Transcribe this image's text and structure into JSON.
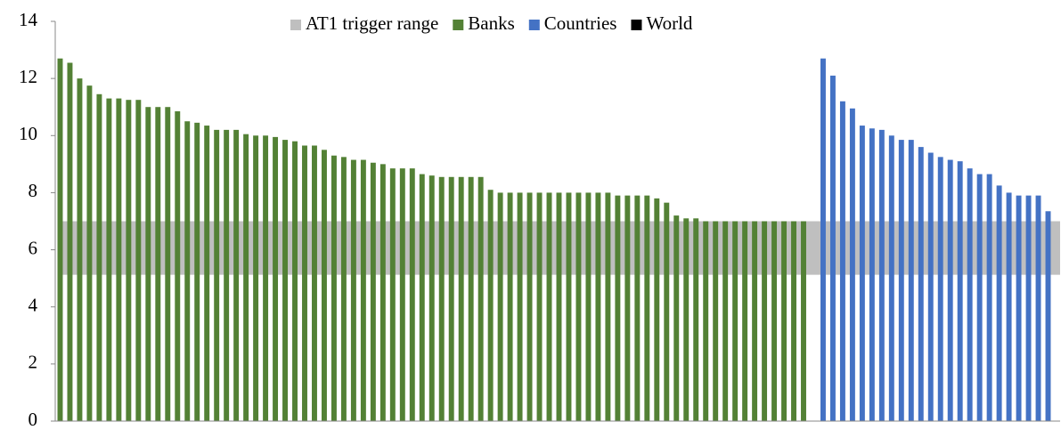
{
  "chart_data": {
    "type": "bar",
    "categories": [
      null,
      null,
      null,
      null,
      null,
      null,
      null,
      null,
      null,
      null,
      null,
      null,
      null,
      null,
      null,
      null,
      null,
      null,
      null,
      null,
      null,
      null,
      null,
      null,
      null,
      null,
      null,
      null,
      null,
      null,
      null,
      null,
      null,
      null,
      null,
      null,
      null,
      null,
      null,
      null,
      null,
      null,
      null,
      null,
      null,
      null,
      null,
      null,
      null,
      null,
      null,
      null,
      null,
      null,
      null,
      null,
      null,
      null,
      null,
      null,
      null,
      null,
      null,
      null,
      null,
      null,
      null,
      null,
      null,
      null,
      null,
      null,
      null,
      null,
      null,
      null,
      null,
      null,
      null,
      null,
      null,
      null,
      null,
      null,
      null,
      null,
      null,
      null,
      null,
      null,
      null,
      null,
      null,
      null,
      null,
      null,
      null,
      null,
      null,
      null,
      null,
      null
    ],
    "bands": [
      {
        "name": "AT1 trigger range",
        "color": "#bfbfbf",
        "from": 5.125,
        "to": 7
      }
    ],
    "series": [
      {
        "name": "Banks",
        "color": "#538135",
        "values": [
          12.7,
          12.55,
          12.0,
          11.75,
          11.45,
          11.3,
          11.3,
          11.25,
          11.25,
          11.0,
          11.0,
          11.0,
          10.85,
          10.5,
          10.45,
          10.35,
          10.2,
          10.2,
          10.2,
          10.05,
          10.0,
          10.0,
          9.95,
          9.85,
          9.8,
          9.65,
          9.65,
          9.5,
          9.3,
          9.25,
          9.15,
          9.15,
          9.05,
          9.0,
          8.85,
          8.85,
          8.85,
          8.65,
          8.6,
          8.55,
          8.55,
          8.55,
          8.55,
          8.55,
          8.1,
          8.0,
          8.0,
          8.0,
          8.0,
          8.0,
          8.0,
          8.0,
          8.0,
          8.0,
          8.0,
          8.0,
          8.0,
          7.9,
          7.9,
          7.9,
          7.9,
          7.8,
          7.65,
          7.2,
          7.1,
          7.1,
          7.0,
          7.0,
          7.0,
          7.0,
          7.0,
          7.0,
          7.0,
          7.0,
          7.0,
          7.0,
          7.0,
          null,
          null,
          null,
          null,
          null,
          null,
          null,
          null,
          null,
          null,
          null,
          null,
          null,
          null,
          null,
          null,
          null,
          null,
          null,
          null,
          null,
          null,
          null,
          null,
          null
        ]
      },
      {
        "name": "Countries",
        "color": "#4472c4",
        "values": [
          null,
          null,
          null,
          null,
          null,
          null,
          null,
          null,
          null,
          null,
          null,
          null,
          null,
          null,
          null,
          null,
          null,
          null,
          null,
          null,
          null,
          null,
          null,
          null,
          null,
          null,
          null,
          null,
          null,
          null,
          null,
          null,
          null,
          null,
          null,
          null,
          null,
          null,
          null,
          null,
          null,
          null,
          null,
          null,
          null,
          null,
          null,
          null,
          null,
          null,
          null,
          null,
          null,
          null,
          null,
          null,
          null,
          null,
          null,
          null,
          null,
          null,
          null,
          null,
          null,
          null,
          null,
          null,
          null,
          null,
          null,
          null,
          null,
          null,
          null,
          null,
          null,
          null,
          12.7,
          12.1,
          11.2,
          10.95,
          10.35,
          10.25,
          10.2,
          10.0,
          9.85,
          9.85,
          9.6,
          9.4,
          9.25,
          9.15,
          9.1,
          8.85,
          8.65,
          8.65,
          8.25,
          8.0,
          7.9,
          7.9,
          7.9,
          7.35
        ]
      },
      {
        "name": "World",
        "color": "#000000",
        "values": [
          null,
          null,
          null,
          null,
          null,
          null,
          null,
          null,
          null,
          null,
          null,
          null,
          null,
          null,
          null,
          null,
          null,
          null,
          null,
          null,
          null,
          null,
          null,
          null,
          null,
          null,
          null,
          null,
          null,
          null,
          null,
          null,
          null,
          null,
          null,
          null,
          null,
          null,
          null,
          null,
          null,
          null,
          null,
          null,
          null,
          null,
          null,
          null,
          null,
          null,
          null,
          null,
          null,
          null,
          null,
          null,
          null,
          null,
          null,
          null,
          null,
          null,
          null,
          null,
          null,
          null,
          null,
          null,
          null,
          null,
          null,
          null,
          null,
          null,
          null,
          null,
          null,
          null,
          null,
          null,
          null,
          null,
          null,
          null,
          null,
          null,
          null,
          null,
          null,
          null,
          null,
          null,
          null,
          null,
          null,
          null,
          null,
          null,
          null,
          null,
          null,
          null
        ]
      }
    ],
    "ylim": [
      0,
      14
    ],
    "yticks": [
      0,
      2,
      4,
      6,
      8,
      10,
      12,
      14
    ],
    "grid": false
  }
}
